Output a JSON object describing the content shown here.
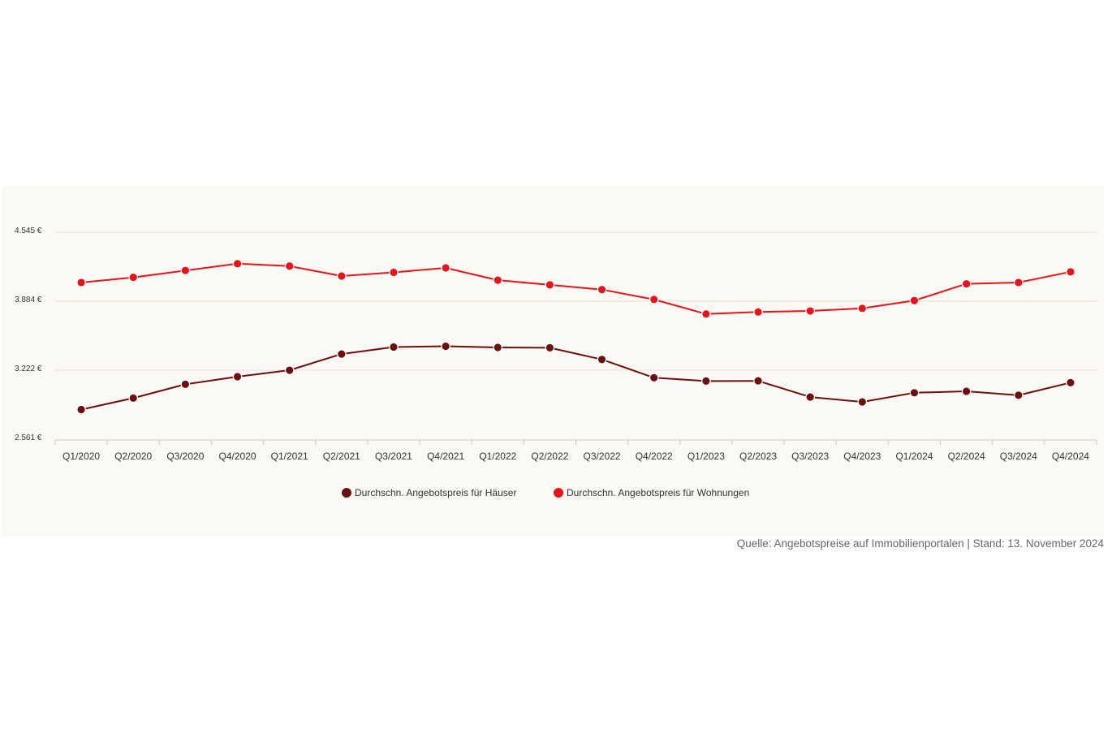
{
  "chart_data": {
    "type": "line",
    "categories": [
      "Q1/2020",
      "Q2/2020",
      "Q3/2020",
      "Q4/2020",
      "Q1/2021",
      "Q2/2021",
      "Q3/2021",
      "Q4/2021",
      "Q1/2022",
      "Q2/2022",
      "Q3/2022",
      "Q4/2022",
      "Q1/2023",
      "Q2/2023",
      "Q3/2023",
      "Q4/2023",
      "Q1/2024",
      "Q2/2024",
      "Q3/2024",
      "Q4/2024"
    ],
    "yticks": [
      2561,
      3222,
      3884,
      4545
    ],
    "ytick_labels": [
      "2.561 €",
      "3.222 €",
      "3.884 €",
      "4.545 €"
    ],
    "ylim": [
      2561,
      4545
    ],
    "grid": true,
    "legend_position": "bottom",
    "series": [
      {
        "name": "Durchschn. Angebotspreis für Häuser",
        "color": "#6b1010",
        "values": [
          2845,
          2955,
          3087,
          3160,
          3222,
          3377,
          3444,
          3452,
          3440,
          3437,
          3325,
          3150,
          3118,
          3120,
          2965,
          2918,
          3006,
          3020,
          2982,
          3103
        ]
      },
      {
        "name": "Durchschn. Angebotspreis für Wohnungen",
        "color": "#e3151d",
        "values": [
          4063,
          4112,
          4178,
          4243,
          4220,
          4125,
          4160,
          4203,
          4085,
          4040,
          3995,
          3900,
          3761,
          3780,
          3790,
          3815,
          3890,
          4050,
          4063,
          4165
        ]
      }
    ]
  },
  "source_note": "Quelle: Angebotspreise auf Immobilienportalen | Stand: 13. November 2024"
}
